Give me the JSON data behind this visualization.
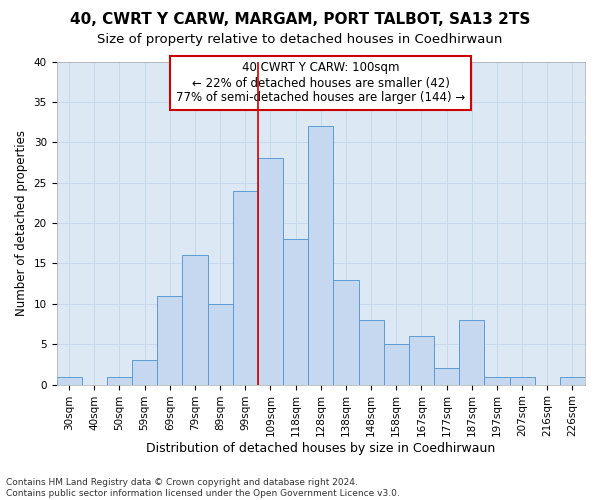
{
  "title1": "40, CWRT Y CARW, MARGAM, PORT TALBOT, SA13 2TS",
  "title2": "Size of property relative to detached houses in Coedhirwaun",
  "xlabel": "Distribution of detached houses by size in Coedhirwaun",
  "ylabel": "Number of detached properties",
  "categories": [
    "30sqm",
    "40sqm",
    "50sqm",
    "59sqm",
    "69sqm",
    "79sqm",
    "89sqm",
    "99sqm",
    "109sqm",
    "118sqm",
    "128sqm",
    "138sqm",
    "148sqm",
    "158sqm",
    "167sqm",
    "177sqm",
    "187sqm",
    "197sqm",
    "207sqm",
    "216sqm",
    "226sqm"
  ],
  "values": [
    1,
    0,
    1,
    3,
    11,
    16,
    10,
    24,
    28,
    18,
    32,
    13,
    8,
    5,
    6,
    2,
    8,
    1,
    1,
    0,
    1
  ],
  "bar_color": "#c5d8f0",
  "bar_edge_color": "#5b9bd5",
  "subject_line_color": "#cc0000",
  "annotation_text": "40 CWRT Y CARW: 100sqm\n← 22% of detached houses are smaller (42)\n77% of semi-detached houses are larger (144) →",
  "annotation_box_color": "#ffffff",
  "annotation_box_edgecolor": "#cc0000",
  "ylim": [
    0,
    40
  ],
  "yticks": [
    0,
    5,
    10,
    15,
    20,
    25,
    30,
    35,
    40
  ],
  "grid_color": "#c8d8eb",
  "background_color": "#dce9f5",
  "footer_text": "Contains HM Land Registry data © Crown copyright and database right 2024.\nContains public sector information licensed under the Open Government Licence v3.0.",
  "title1_fontsize": 11,
  "title2_fontsize": 9.5,
  "xlabel_fontsize": 9,
  "ylabel_fontsize": 8.5,
  "tick_fontsize": 7.5,
  "annotation_fontsize": 8.5,
  "footer_fontsize": 6.5
}
